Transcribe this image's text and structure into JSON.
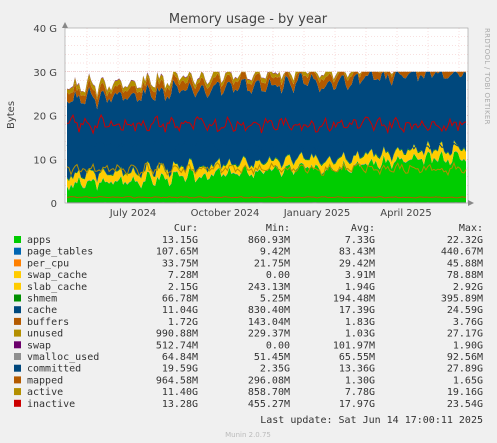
{
  "chart_data": {
    "type": "area",
    "title": "Memory usage - by year",
    "ylabel": "Bytes",
    "side_label": "RRDTOOL / TOBI OETIKER",
    "ylim": [
      0,
      40
    ],
    "y_unit": "G",
    "y_ticks": [
      "0",
      "10 G",
      "20 G",
      "30 G",
      "40 G"
    ],
    "x_ticks": [
      "July 2024",
      "October 2024",
      "January 2025",
      "April 2025"
    ],
    "stacked": true,
    "grid": true,
    "series": [
      {
        "name": "apps",
        "color": "#00cc00",
        "cur": "13.15G",
        "min": "860.93M",
        "avg": "7.33G",
        "max": "22.32G",
        "level_g": 7.3
      },
      {
        "name": "page_tables",
        "color": "#0066b3",
        "cur": "107.65M",
        "min": "9.42M",
        "avg": "83.43M",
        "max": "440.67M",
        "level_g": 0.08
      },
      {
        "name": "per_cpu",
        "color": "#ff8000",
        "cur": "33.75M",
        "min": "21.75M",
        "avg": "29.42M",
        "max": "45.88M",
        "level_g": 0.03
      },
      {
        "name": "swap_cache",
        "color": "#ffcc00",
        "cur": "7.28M",
        "min": "0.00",
        "avg": "3.91M",
        "max": "78.88M",
        "level_g": 0.0
      },
      {
        "name": "slab_cache",
        "color": "#ffcc00",
        "cur": "2.15G",
        "min": "243.13M",
        "avg": "1.94G",
        "max": "2.92G",
        "level_g": 1.94
      },
      {
        "name": "shmem",
        "color": "#008f00",
        "cur": "66.78M",
        "min": "5.25M",
        "avg": "194.48M",
        "max": "395.89M",
        "level_g": 0.19
      },
      {
        "name": "cache",
        "color": "#00487d",
        "cur": "11.04G",
        "min": "830.40M",
        "avg": "17.39G",
        "max": "24.59G",
        "level_g": 17.39
      },
      {
        "name": "buffers",
        "color": "#b35a00",
        "cur": "1.72G",
        "min": "143.04M",
        "avg": "1.83G",
        "max": "3.76G",
        "level_g": 1.83
      },
      {
        "name": "unused",
        "color": "#b38f00",
        "cur": "990.88M",
        "min": "229.37M",
        "avg": "1.03G",
        "max": "27.17G",
        "level_g": 1.03
      },
      {
        "name": "swap",
        "color": "#6b006b",
        "cur": "512.74M",
        "min": "0.00",
        "avg": "101.97M",
        "max": "1.90G",
        "level_g": 0.1
      },
      {
        "name": "vmalloc_used",
        "color": "#8f8f8f",
        "cur": "64.84M",
        "min": "51.45M",
        "avg": "65.55M",
        "max": "92.56M",
        "level_g": 0.07
      },
      {
        "name": "committed",
        "color": "#00487d",
        "cur": "19.59G",
        "min": "2.35G",
        "avg": "13.36G",
        "max": "27.89G",
        "level_g": 13.36
      },
      {
        "name": "mapped",
        "color": "#b35a00",
        "cur": "964.58M",
        "min": "296.08M",
        "avg": "1.30G",
        "max": "1.65G",
        "level_g": 1.3
      },
      {
        "name": "active",
        "color": "#b38f00",
        "cur": "11.40G",
        "min": "858.70M",
        "avg": "7.78G",
        "max": "19.16G",
        "level_g": 7.78
      },
      {
        "name": "inactive",
        "color": "#cc0000",
        "cur": "13.28G",
        "min": "455.27M",
        "avg": "17.97G",
        "max": "23.54G",
        "level_g": 17.97
      }
    ]
  },
  "legend": {
    "headers": [
      "Cur:",
      "Min:",
      "Avg:",
      "Max:"
    ]
  },
  "footer": {
    "last_update": "Last update: Sat Jun 14 17:00:11 2025",
    "version": "Munin 2.0.75"
  }
}
